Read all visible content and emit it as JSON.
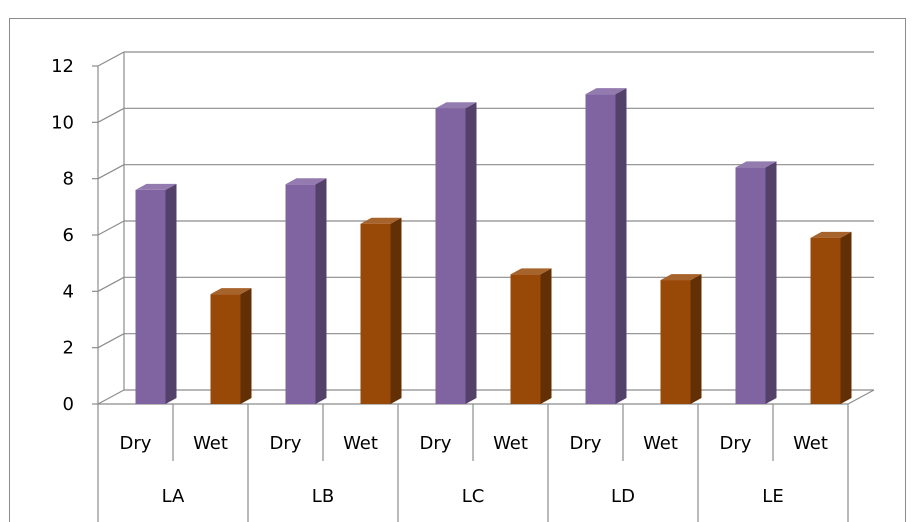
{
  "chart_data": {
    "type": "bar",
    "title": "",
    "xlabel": "",
    "ylabel": "",
    "ylim": [
      0,
      12
    ],
    "yticks": [
      0,
      2,
      4,
      6,
      8,
      10,
      12
    ],
    "grid": true,
    "legend": "none",
    "groups": [
      "LA",
      "LB",
      "LC",
      "LD",
      "LE"
    ],
    "categories": [
      "Dry",
      "Wet",
      "Dry",
      "Wet",
      "Dry",
      "Wet",
      "Dry",
      "Wet",
      "Dry",
      "Wet"
    ],
    "values": [
      7.6,
      3.9,
      7.8,
      6.4,
      10.5,
      4.6,
      11.0,
      4.4,
      8.4,
      5.9
    ],
    "colors": {
      "Dry": "#8064a2",
      "Wet": "#984807"
    },
    "style": "3d-column"
  }
}
